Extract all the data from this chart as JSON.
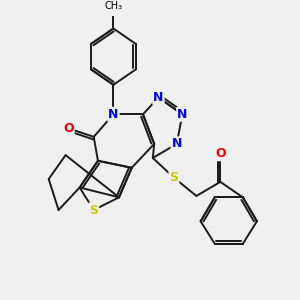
{
  "bg_color": "#f0f0f0",
  "bond_color": "#1a1a1a",
  "bond_width": 1.4,
  "atom_colors": {
    "N": "#0000ee",
    "O": "#ee0000",
    "S": "#cccc00",
    "C": "#1a1a1a"
  }
}
